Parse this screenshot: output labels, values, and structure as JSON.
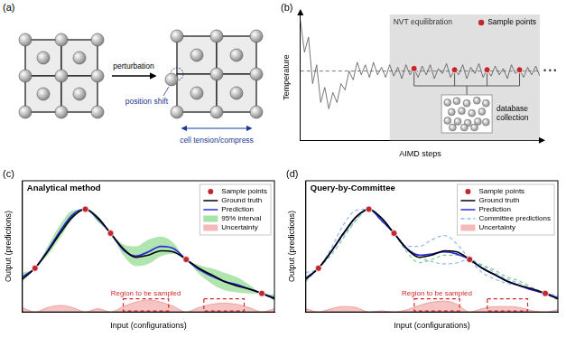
{
  "diagram": {
    "panel_label": "(a)",
    "arrow_label": "perturbation",
    "annotations": [
      "position shift",
      "cell tension/compress"
    ]
  },
  "chart_data": [
    {
      "panel_label": "(b)",
      "type": "line",
      "x_label": "AIMD steps",
      "y_label": "Temperature",
      "color": "#555555",
      "x": [
        0,
        1,
        2,
        3,
        4,
        5,
        6,
        7,
        8,
        9,
        10,
        11,
        12,
        13,
        14,
        15,
        16,
        17,
        18,
        19,
        20,
        21,
        22,
        23,
        24,
        25,
        26,
        27,
        28,
        29,
        30,
        31,
        32,
        33,
        34,
        35,
        36,
        37,
        38,
        39,
        40,
        41,
        42,
        43,
        44,
        45,
        46,
        47,
        48,
        49,
        50,
        51,
        52,
        53,
        54,
        55,
        56,
        57,
        58,
        59
      ],
      "values": [
        0.95,
        0.7,
        0.82,
        0.45,
        0.6,
        0.3,
        0.42,
        0.25,
        0.38,
        0.3,
        0.45,
        0.4,
        0.55,
        0.48,
        0.62,
        0.52,
        0.6,
        0.5,
        0.62,
        0.52,
        0.58,
        0.5,
        0.6,
        0.51,
        0.58,
        0.49,
        0.6,
        0.52,
        0.57,
        0.5,
        0.59,
        0.52,
        0.6,
        0.49,
        0.57,
        0.53,
        0.61,
        0.5,
        0.56,
        0.52,
        0.6,
        0.49,
        0.58,
        0.53,
        0.61,
        0.5,
        0.56,
        0.51,
        0.59,
        0.52,
        0.57,
        0.49,
        0.6,
        0.53,
        0.56,
        0.5,
        0.58,
        0.52,
        0.59,
        0.51
      ],
      "sample_points": {
        "name": "Sample points",
        "color": "#c0282d",
        "x": [
          28,
          38,
          46,
          54
        ],
        "values": [
          0.57,
          0.56,
          0.56,
          0.56
        ]
      },
      "region": {
        "label": "NVT equilibration",
        "x": [
          22,
          59
        ],
        "color": "#e0e0e0"
      },
      "reference_line": {
        "value": 0.55,
        "line_style": "dashed",
        "color": "#777777"
      },
      "annotations": [
        "database collection",
        "• • •"
      ],
      "xlim": [
        0,
        59
      ],
      "ylim": [
        0,
        1
      ],
      "tick_labels": false,
      "legend": "upper right"
    },
    {
      "panel_label": "(c)",
      "type": "line",
      "title": "Analytical method",
      "x_label": "Input (configurations)",
      "y_label": "Output (predictions)",
      "x": [
        0,
        0.5,
        1,
        1.5,
        2,
        2.5,
        3,
        3.5,
        4,
        4.5,
        5,
        5.5,
        6,
        6.5,
        7,
        7.5,
        8,
        8.5,
        9,
        9.5,
        10
      ],
      "series": [
        {
          "name": "Ground truth",
          "color": "#000000",
          "line_style": "solid",
          "values": [
            0.3,
            0.4,
            0.55,
            0.72,
            0.87,
            0.94,
            0.86,
            0.72,
            0.58,
            0.5,
            0.52,
            0.56,
            0.55,
            0.48,
            0.4,
            0.34,
            0.28,
            0.24,
            0.21,
            0.17,
            0.12
          ]
        },
        {
          "name": "Prediction",
          "color": "#2b2bd9",
          "line_style": "solid",
          "values": [
            0.32,
            0.4,
            0.56,
            0.74,
            0.89,
            0.94,
            0.85,
            0.72,
            0.57,
            0.51,
            0.55,
            0.6,
            0.58,
            0.48,
            0.39,
            0.33,
            0.28,
            0.25,
            0.21,
            0.17,
            0.13
          ]
        }
      ],
      "interval": {
        "name": "95% interval",
        "color": "#6fcf6f",
        "upper": [
          0.36,
          0.4,
          0.6,
          0.8,
          0.93,
          0.94,
          0.88,
          0.72,
          0.62,
          0.6,
          0.66,
          0.69,
          0.63,
          0.48,
          0.43,
          0.4,
          0.36,
          0.32,
          0.25,
          0.17,
          0.16
        ],
        "lower": [
          0.28,
          0.4,
          0.52,
          0.68,
          0.85,
          0.94,
          0.82,
          0.72,
          0.52,
          0.42,
          0.44,
          0.51,
          0.53,
          0.48,
          0.35,
          0.26,
          0.2,
          0.18,
          0.17,
          0.17,
          0.1
        ]
      },
      "uncertainty": {
        "name": "Uncertainty",
        "color": "#f08a8a",
        "values": [
          0.04,
          0,
          0.04,
          0.06,
          0.04,
          0,
          0.03,
          0,
          0.05,
          0.09,
          0.11,
          0.09,
          0.05,
          0,
          0.04,
          0.07,
          0.08,
          0.07,
          0.04,
          0,
          0.03
        ]
      },
      "sample_points": {
        "name": "Sample points",
        "color": "#c0282d",
        "x": [
          0.5,
          2.5,
          3.5,
          6.5,
          9.5
        ],
        "values": [
          0.4,
          0.94,
          0.72,
          0.48,
          0.17
        ]
      },
      "regions": {
        "label": "Region to be sampled",
        "color": "#d62728",
        "line_style": "dashed",
        "x": [
          [
            4,
            5.8
          ],
          [
            7.2,
            8.8
          ]
        ],
        "top": 0.12
      },
      "xlim": [
        0,
        10
      ],
      "ylim": [
        0,
        1.2
      ],
      "tick_labels": false,
      "legend": "upper right"
    },
    {
      "panel_label": "(d)",
      "type": "line",
      "title": "Query-by-Committee",
      "x_label": "Input (configurations)",
      "y_label": "Output (predictions)",
      "x": [
        0,
        0.5,
        1,
        1.5,
        2,
        2.5,
        3,
        3.5,
        4,
        4.5,
        5,
        5.5,
        6,
        6.5,
        7,
        7.5,
        8,
        8.5,
        9,
        9.5,
        10
      ],
      "series": [
        {
          "name": "Ground truth",
          "color": "#000000",
          "line_style": "solid",
          "values": [
            0.3,
            0.4,
            0.55,
            0.72,
            0.87,
            0.94,
            0.86,
            0.72,
            0.58,
            0.5,
            0.52,
            0.56,
            0.55,
            0.48,
            0.4,
            0.34,
            0.28,
            0.24,
            0.21,
            0.17,
            0.12
          ]
        },
        {
          "name": "Prediction",
          "color": "#2b2bd9",
          "line_style": "solid",
          "values": [
            0.31,
            0.4,
            0.55,
            0.72,
            0.87,
            0.94,
            0.84,
            0.72,
            0.58,
            0.52,
            0.53,
            0.55,
            0.53,
            0.48,
            0.4,
            0.34,
            0.28,
            0.24,
            0.2,
            0.17,
            0.13
          ]
        }
      ],
      "committee": {
        "name": "Committee predictions",
        "colors": [
          "#8fb8e8",
          "#7fcf8f",
          "#8fb8e8"
        ],
        "line_style": "dashed",
        "values": [
          [
            0.36,
            0.4,
            0.58,
            0.8,
            0.93,
            0.94,
            0.86,
            0.72,
            0.6,
            0.6,
            0.66,
            0.7,
            0.62,
            0.48,
            0.36,
            0.3,
            0.26,
            0.24,
            0.2,
            0.17,
            0.15
          ],
          [
            0.28,
            0.4,
            0.52,
            0.68,
            0.84,
            0.94,
            0.83,
            0.72,
            0.55,
            0.45,
            0.48,
            0.52,
            0.52,
            0.48,
            0.43,
            0.38,
            0.32,
            0.28,
            0.22,
            0.17,
            0.11
          ],
          [
            0.3,
            0.4,
            0.55,
            0.7,
            0.84,
            0.94,
            0.84,
            0.72,
            0.57,
            0.5,
            0.46,
            0.44,
            0.45,
            0.48,
            0.42,
            0.36,
            0.3,
            0.26,
            0.21,
            0.17,
            0.12
          ]
        ]
      },
      "uncertainty": {
        "name": "Uncertainty",
        "color": "#f08a8a",
        "values": [
          0.03,
          0,
          0.03,
          0.05,
          0.04,
          0,
          0.01,
          0,
          0.02,
          0.06,
          0.09,
          0.1,
          0.07,
          0,
          0.03,
          0.05,
          0.05,
          0.04,
          0.01,
          0,
          0.02
        ]
      },
      "sample_points": {
        "name": "Sample points",
        "color": "#c0282d",
        "x": [
          0.5,
          2.5,
          3.5,
          6.5,
          9.5
        ],
        "values": [
          0.4,
          0.94,
          0.72,
          0.48,
          0.17
        ]
      },
      "regions": {
        "label": "Region to be sampled",
        "color": "#d62728",
        "line_style": "dashed",
        "x": [
          [
            4.3,
            6.1
          ],
          [
            7.2,
            8.8
          ]
        ],
        "top": 0.12
      },
      "xlim": [
        0,
        10
      ],
      "ylim": [
        0,
        1.2
      ],
      "tick_labels": false,
      "legend": "upper right"
    }
  ]
}
